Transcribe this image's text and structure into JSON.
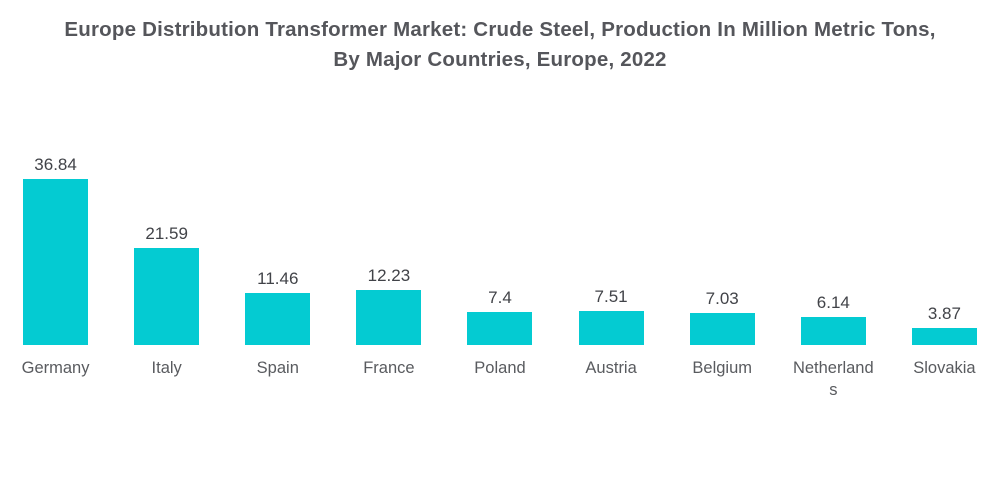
{
  "title": "Europe Distribution Transformer Market: Crude Steel, Production In Million Metric Tons, By Major Countries, Europe, 2022",
  "chart_data": {
    "type": "bar",
    "title": "Europe Distribution Transformer Market: Crude Steel, Production In Million Metric Tons, By Major Countries, Europe, 2022",
    "categories": [
      "Germany",
      "Italy",
      "Spain",
      "France",
      "Poland",
      "Austria",
      "Belgium",
      "Netherlands",
      "Slovakia"
    ],
    "values": [
      36.84,
      21.59,
      11.46,
      12.23,
      7.4,
      7.51,
      7.03,
      6.14,
      3.87
    ],
    "xlabel": "",
    "ylabel": "",
    "ylim": [
      0,
      40
    ],
    "grid": false,
    "legend_position": "none",
    "value_labels_shown": true,
    "colors": {
      "bar": "#04cbd2",
      "value_label": "#414348",
      "category_label": "#595b5f",
      "title": "#55565b",
      "background": "#ffffff"
    }
  }
}
